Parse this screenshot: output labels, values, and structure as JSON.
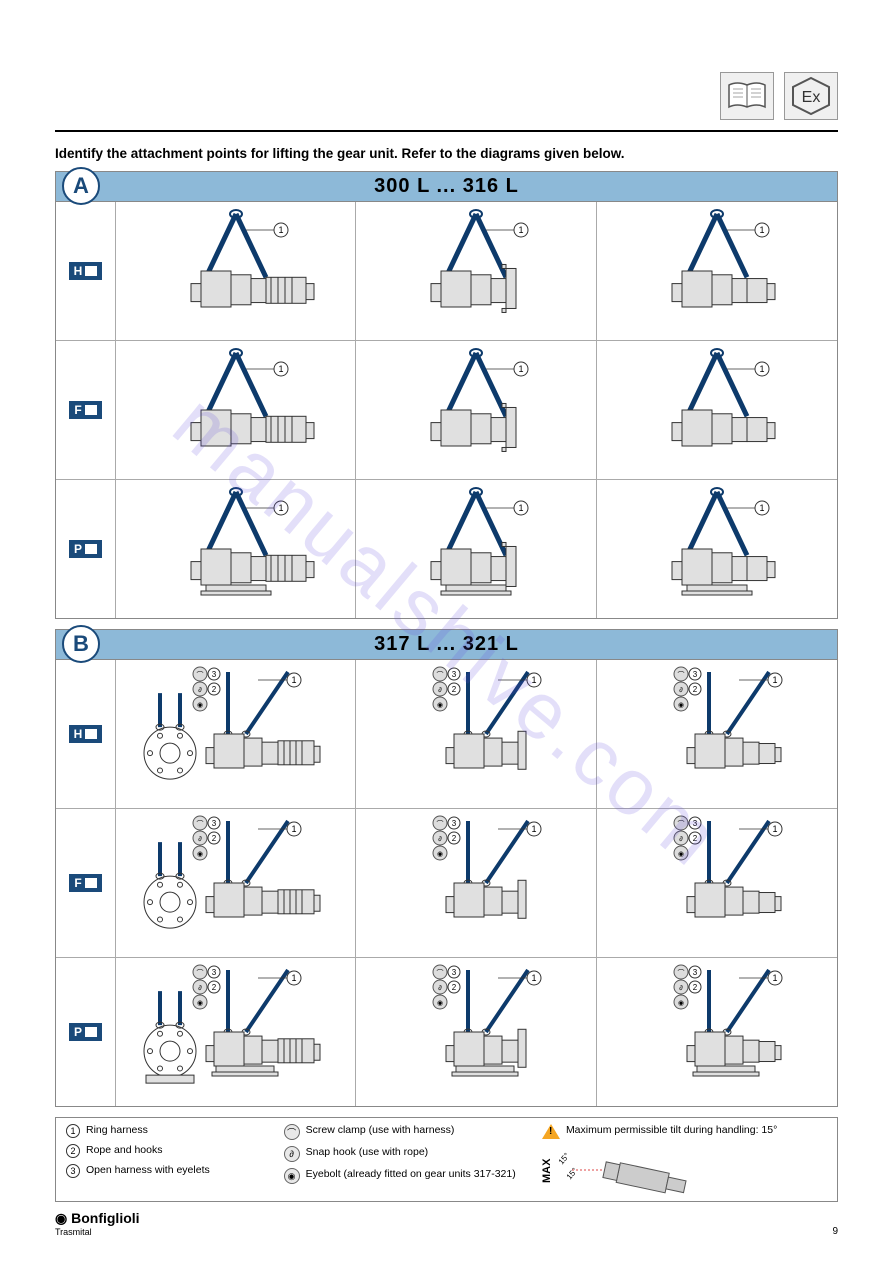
{
  "instruction": "Identify the attachment points for lifting the gear unit. Refer to the diagrams given below.",
  "panelA": {
    "letter": "A",
    "title": "300 L ... 316 L",
    "rowLabels": [
      "H",
      "F",
      "P"
    ],
    "callout": "1"
  },
  "panelB": {
    "letter": "B",
    "title": "317 L ... 321 L",
    "rowLabels": [
      "H",
      "F",
      "P"
    ],
    "callouts": [
      "3",
      "2",
      "1"
    ]
  },
  "legend": {
    "col1": [
      {
        "num": "1",
        "text": "Ring harness"
      },
      {
        "num": "2",
        "text": "Rope and hooks"
      },
      {
        "num": "3",
        "text": "Open harness with eyelets"
      }
    ],
    "col2": [
      {
        "text": "Screw clamp (use with harness)"
      },
      {
        "text": "Snap hook (use with rope)"
      },
      {
        "text": "Eyebolt (already fitted on gear units 317-321)"
      }
    ],
    "col3": {
      "warning": "Maximum permissible tilt during handling: 15°",
      "maxLabel": "MAX",
      "angles": "15° 15°"
    }
  },
  "footer": {
    "brand": "Bonfiglioli",
    "subBrand": "Trasmital",
    "page": "9"
  },
  "watermark": "manualshive.com",
  "colors": {
    "headerBar": "#8db9d8",
    "darkBlue": "#1a4a7a",
    "sling": "#0d3a6b",
    "gearBody": "#e0e0e0",
    "gearStroke": "#333"
  }
}
